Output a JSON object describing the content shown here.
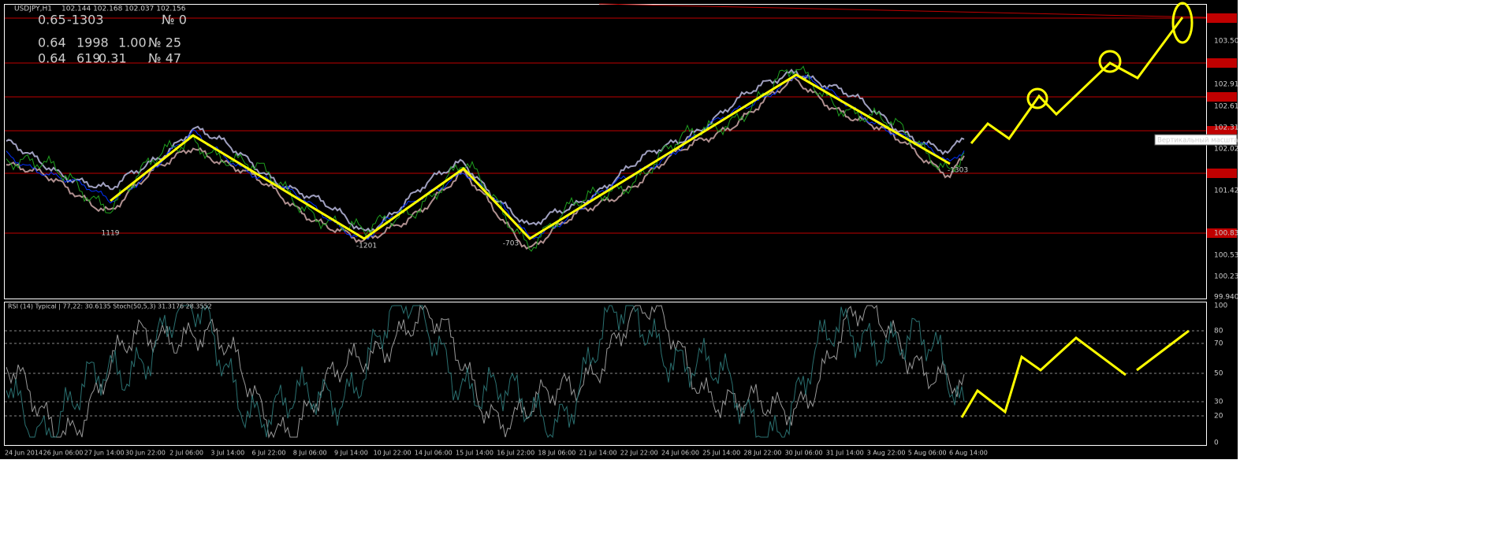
{
  "header": {
    "symbol": "USDJPY,H1",
    "quote": "102.144 102.168 102.037 102.156"
  },
  "stats": [
    [
      "0.65",
      "-1303",
      "№ 0"
    ],
    [
      "0.64",
      "1998",
      "1.00",
      "№ 25"
    ],
    [
      "0.64",
      "619",
      "0.31",
      "№ 47"
    ]
  ],
  "price_axis": [
    "103.505",
    "102.910",
    "102.615",
    "102.315",
    "102.020",
    "101.425",
    "100.835",
    "100.535",
    "100.235",
    "99.940"
  ],
  "tooltip": "Вертикальный масштаб",
  "zigzag_labels": [
    "1119",
    "-1201",
    "-703",
    "-1303"
  ],
  "indicator": {
    "header": "RSI (14) Typical | 77,22: 30.6135  Stoch(50,5,3) 31.3176 28.3552",
    "axis": [
      "100",
      "80",
      "70",
      "50",
      "30",
      "20",
      "0"
    ]
  },
  "time_axis": [
    "24 Jun 2014",
    "26 Jun 06:00",
    "27 Jun 14:00",
    "30 Jun 22:00",
    "2 Jul 06:00",
    "3 Jul 14:00",
    "6 Jul 22:00",
    "8 Jul 06:00",
    "9 Jul 14:00",
    "10 Jul 22:00",
    "14 Jul 06:00",
    "15 Jul 14:00",
    "16 Jul 22:00",
    "18 Jul 06:00",
    "21 Jul 14:00",
    "22 Jul 22:00",
    "24 Jul 06:00",
    "25 Jul 14:00",
    "28 Jul 22:00",
    "30 Jul 06:00",
    "31 Jul 14:00",
    "3 Aug 22:00",
    "5 Aug 06:00",
    "6 Aug 14:00"
  ]
}
